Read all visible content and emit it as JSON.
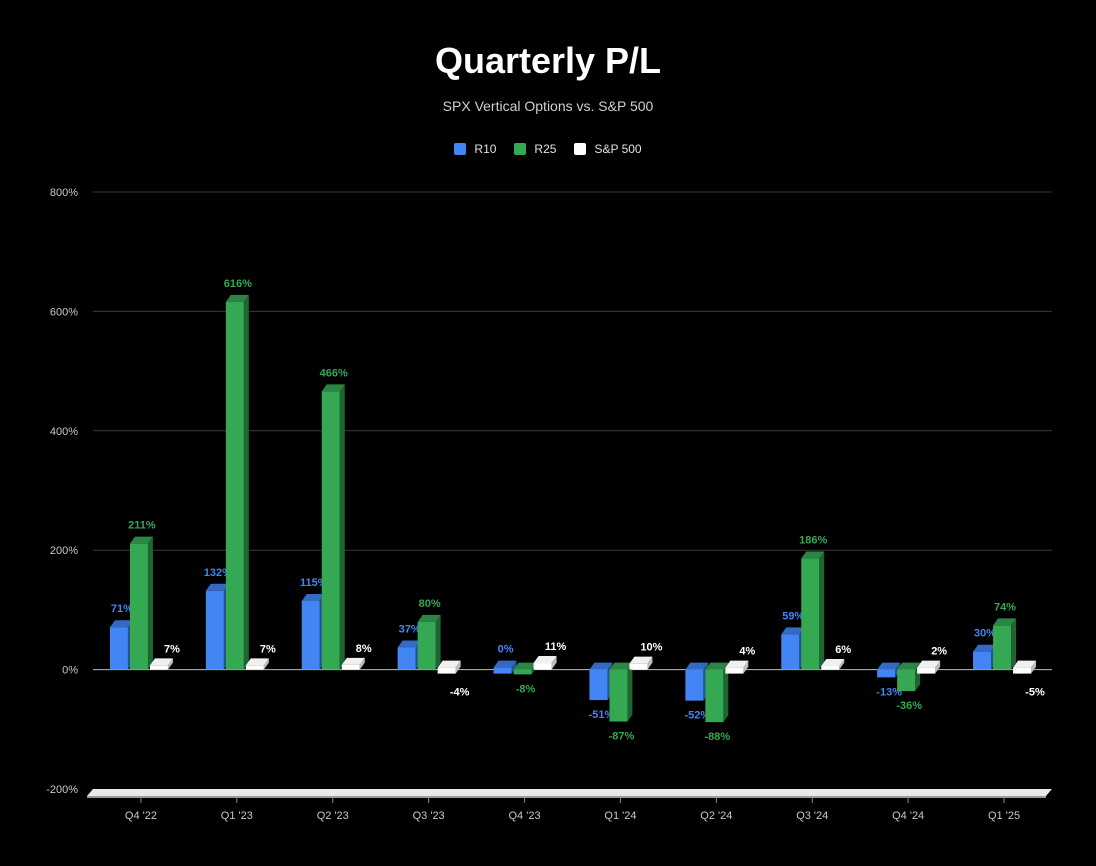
{
  "chart_data": {
    "type": "bar",
    "title": "Quarterly P/L",
    "subtitle": "SPX Vertical Options vs. S&P 500",
    "categories": [
      "Q4 '22",
      "Q1 '23",
      "Q2 '23",
      "Q3 '23",
      "Q4 '23",
      "Q1 '24",
      "Q2 '24",
      "Q3 '24",
      "Q4 '24",
      "Q1 '25"
    ],
    "series": [
      {
        "name": "R10",
        "color": "#4285f4",
        "values": [
          71,
          132,
          115,
          37,
          0,
          -51,
          -52,
          59,
          -13,
          30
        ]
      },
      {
        "name": "R25",
        "color": "#34a853",
        "values": [
          211,
          616,
          466,
          80,
          -8,
          -87,
          -88,
          186,
          -36,
          74
        ]
      },
      {
        "name": "S&P 500",
        "color": "#ffffff",
        "values": [
          7,
          7,
          8,
          -4,
          11,
          10,
          4,
          6,
          2,
          -5
        ]
      }
    ],
    "yticks": [
      "800%",
      "600%",
      "400%",
      "200%",
      "0%",
      "-200%"
    ],
    "ylim": [
      -200,
      800
    ],
    "grid": true,
    "legend_position": "top-center",
    "label_suffix": "%"
  }
}
